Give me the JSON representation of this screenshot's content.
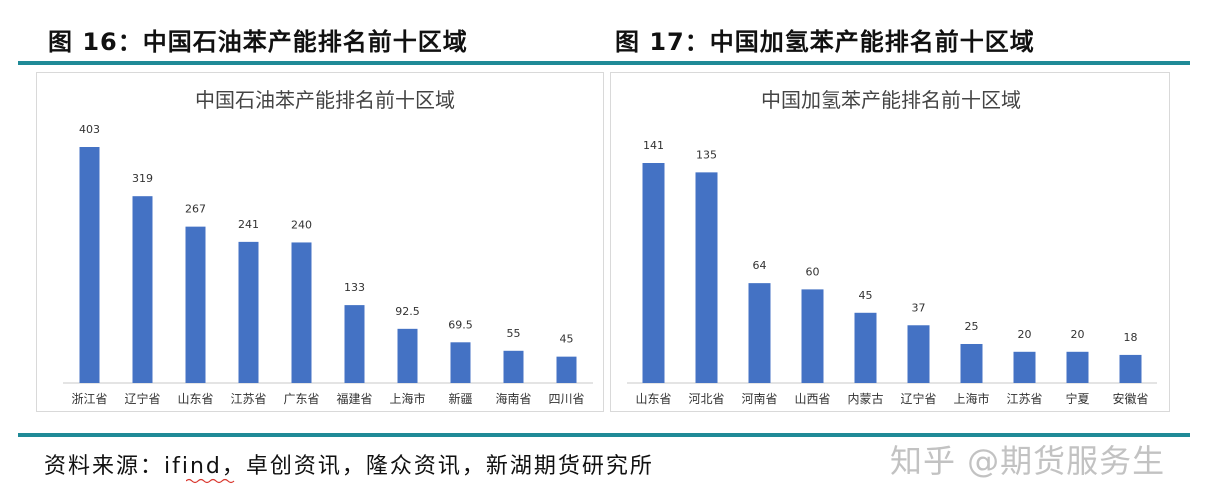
{
  "figures": {
    "fig16_title": "图 16：中国石油苯产能排名前十区域",
    "fig17_title": "图 17：中国加氢苯产能排名前十区域"
  },
  "colors": {
    "bar": "#4472c4",
    "rule": "#1f8a97"
  },
  "chart_data": [
    {
      "type": "bar",
      "title": "中国石油苯产能排名前十区域",
      "categories": [
        "浙江省",
        "辽宁省",
        "山东省",
        "江苏省",
        "广东省",
        "福建省",
        "上海市",
        "新疆",
        "海南省",
        "四川省"
      ],
      "values": [
        403,
        319,
        267,
        241,
        240,
        133,
        92.5,
        69.5,
        55,
        45
      ],
      "value_labels": [
        "403",
        "319",
        "267",
        "241",
        "240",
        "133",
        "92.5",
        "69.5",
        "55",
        "45"
      ],
      "xlabel": "",
      "ylabel": "",
      "ylim": [
        0,
        403
      ],
      "grid": false,
      "legend": "none"
    },
    {
      "type": "bar",
      "title": "中国加氢苯产能排名前十区域",
      "categories": [
        "山东省",
        "河北省",
        "河南省",
        "山西省",
        "内蒙古",
        "辽宁省",
        "上海市",
        "江苏省",
        "宁夏",
        "安徽省"
      ],
      "values": [
        141,
        135,
        64,
        60,
        45,
        37,
        25,
        20,
        20,
        18
      ],
      "value_labels": [
        "141",
        "135",
        "64",
        "60",
        "45",
        "37",
        "25",
        "20",
        "20",
        "18"
      ],
      "xlabel": "",
      "ylabel": "",
      "ylim": [
        0,
        141
      ],
      "grid": false,
      "legend": "none"
    }
  ],
  "source": {
    "text": "资料来源：ifind，卓创资讯，隆众资讯，新湖期货研究所"
  },
  "watermark": {
    "text": "知乎 @期货服务生"
  }
}
